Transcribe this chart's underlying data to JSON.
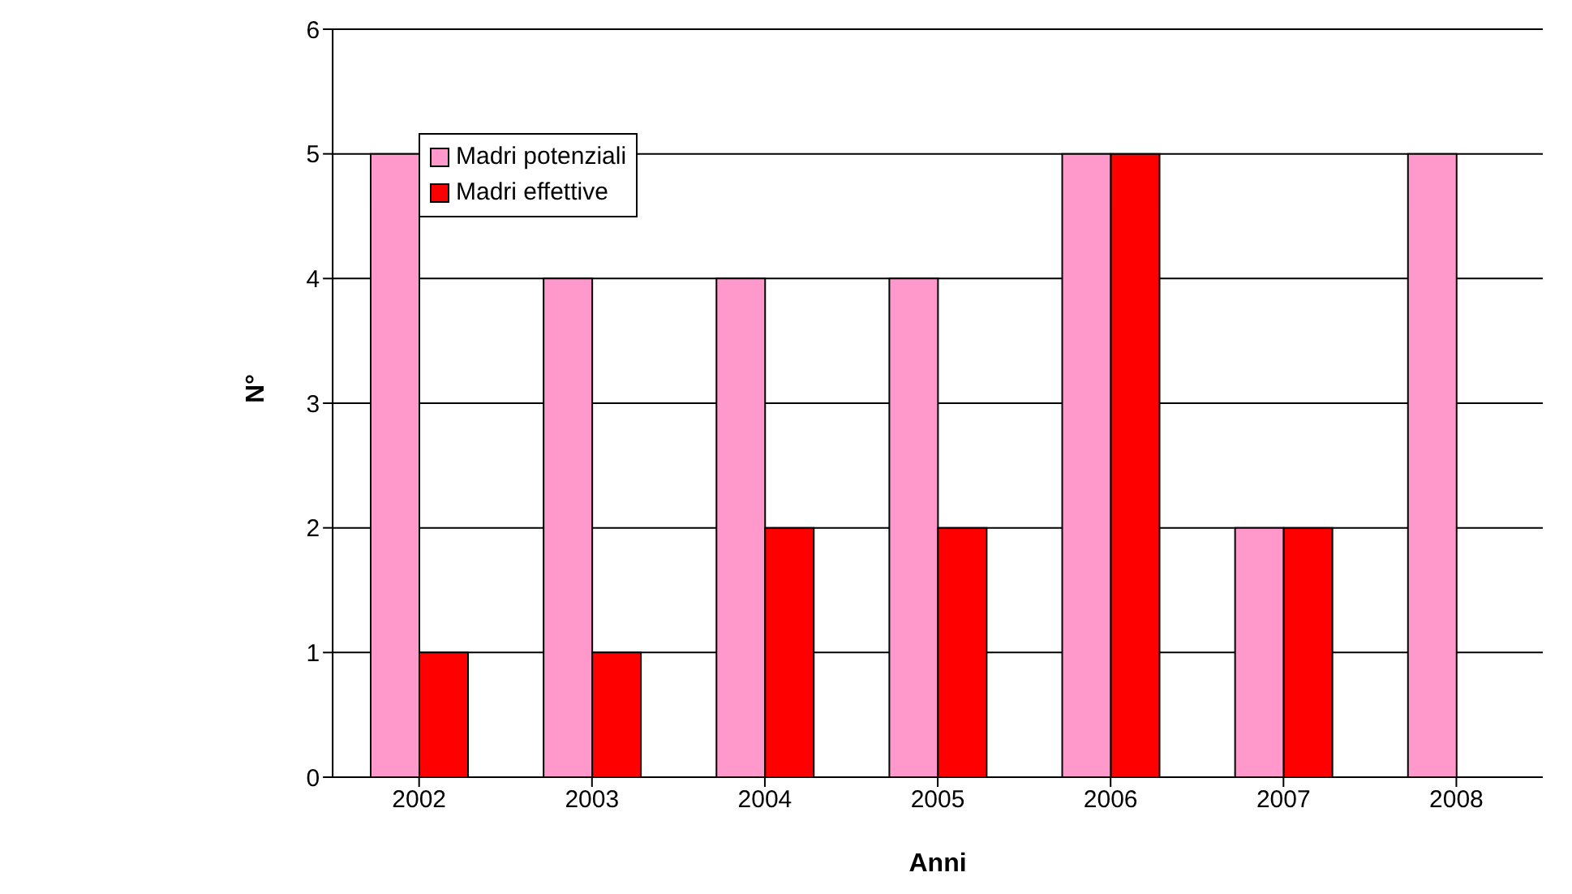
{
  "chart_data": {
    "type": "bar",
    "xlabel": "Anni",
    "ylabel": "N°",
    "categories": [
      "2002",
      "2003",
      "2004",
      "2005",
      "2006",
      "2007",
      "2008"
    ],
    "series": [
      {
        "name": "Madri potenziali",
        "color": "#ff99cc",
        "values": [
          5,
          4,
          4,
          4,
          5,
          2,
          5
        ]
      },
      {
        "name": "Madri effettive",
        "color": "#ff0000",
        "values": [
          1,
          1,
          2,
          2,
          5,
          2,
          null
        ]
      }
    ],
    "ylim": [
      0,
      6
    ],
    "yticks": [
      0,
      1,
      2,
      3,
      4,
      5,
      6
    ],
    "grid": "y",
    "legend": "top left"
  }
}
